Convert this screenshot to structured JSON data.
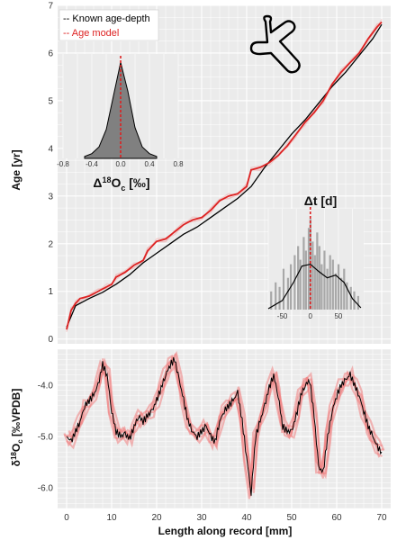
{
  "chart_data": [
    {
      "type": "line",
      "panel": "age-depth",
      "xlabel": "",
      "ylabel": "Age [yr]",
      "xlim": [
        -2,
        72
      ],
      "ylim": [
        -0.1,
        7
      ],
      "yticks": [
        0,
        1,
        2,
        3,
        4,
        5,
        6,
        7
      ],
      "legend": {
        "placement": "top-left",
        "entries": [
          "-- Known age-depth",
          "-- Age model"
        ]
      },
      "series": [
        {
          "name": "Known age-depth",
          "color": "#000000",
          "x": [
            0,
            2,
            5,
            8,
            11,
            14,
            17,
            20,
            23,
            26,
            29,
            32,
            35,
            38,
            41,
            44,
            47,
            50,
            53,
            56,
            59,
            62,
            65,
            68,
            70
          ],
          "y": [
            0.25,
            0.7,
            0.85,
            0.98,
            1.15,
            1.35,
            1.6,
            1.8,
            2.0,
            2.2,
            2.35,
            2.55,
            2.75,
            2.95,
            3.2,
            3.6,
            3.95,
            4.3,
            4.6,
            4.95,
            5.3,
            5.6,
            5.95,
            6.3,
            6.6
          ]
        },
        {
          "name": "Age model",
          "color": "#dd2222",
          "x": [
            0,
            1,
            2,
            3,
            5,
            7,
            9,
            10,
            11,
            13,
            15,
            17,
            18,
            20,
            22,
            24,
            26,
            28,
            30,
            32,
            34,
            36,
            38,
            40,
            41,
            43,
            45,
            47,
            49,
            51,
            53,
            55,
            57,
            59,
            61,
            63,
            65,
            67,
            69,
            70
          ],
          "y": [
            0.2,
            0.6,
            0.75,
            0.85,
            0.9,
            1.0,
            1.1,
            1.15,
            1.3,
            1.4,
            1.55,
            1.65,
            1.85,
            2.05,
            2.1,
            2.25,
            2.4,
            2.5,
            2.55,
            2.7,
            2.9,
            3.0,
            3.05,
            3.2,
            3.55,
            3.6,
            3.7,
            3.85,
            4.05,
            4.3,
            4.55,
            4.75,
            5.0,
            5.35,
            5.6,
            5.8,
            6.0,
            6.3,
            6.55,
            6.65
          ]
        }
      ]
    },
    {
      "type": "line",
      "panel": "isotope",
      "xlabel": "Length along record [mm]",
      "ylabel": "δ18Oc [‰VPDB]",
      "ylabel_parts": {
        "delta": "δ",
        "sup": "18",
        "o": "O",
        "sub": "c",
        "unit": " [‰VPDB]"
      },
      "xlim": [
        -2,
        72
      ],
      "ylim": [
        -6.4,
        -3.3
      ],
      "y_reversed": true,
      "xticks": [
        0,
        10,
        20,
        30,
        40,
        50,
        60,
        70
      ],
      "yticks": [
        -4.0,
        -5.0,
        -6.0
      ],
      "ytick_labels": [
        "-4.0",
        "-5.0",
        "-6.0"
      ],
      "series": [
        {
          "name": "",
          "color": "#000000",
          "x": [
            0,
            1,
            2,
            3,
            4,
            5,
            6,
            7,
            8,
            9,
            10,
            11,
            12,
            13,
            14,
            15,
            16,
            17,
            18,
            19,
            20,
            21,
            22,
            23,
            24,
            25,
            26,
            27,
            28,
            29,
            30,
            31,
            32,
            33,
            34,
            35,
            36,
            37,
            38,
            39,
            40,
            41,
            42,
            43,
            44,
            45,
            46,
            47,
            48,
            49,
            50,
            51,
            52,
            53,
            54,
            55,
            56,
            57,
            58,
            59,
            60,
            61,
            62,
            63,
            64,
            65,
            66,
            67,
            68,
            69,
            70
          ],
          "y": [
            -5.0,
            -5.1,
            -4.9,
            -4.7,
            -4.4,
            -4.3,
            -4.2,
            -4.0,
            -3.6,
            -3.8,
            -4.5,
            -4.9,
            -5.0,
            -4.95,
            -5.05,
            -4.8,
            -4.6,
            -4.7,
            -4.6,
            -4.5,
            -4.3,
            -4.05,
            -3.8,
            -3.6,
            -3.5,
            -3.9,
            -4.3,
            -4.7,
            -4.9,
            -5.0,
            -4.9,
            -4.8,
            -5.0,
            -5.1,
            -4.7,
            -4.5,
            -4.4,
            -4.3,
            -4.15,
            -4.7,
            -5.4,
            -6.1,
            -5.0,
            -4.7,
            -4.4,
            -4.05,
            -3.8,
            -4.2,
            -4.8,
            -4.9,
            -4.9,
            -4.6,
            -4.2,
            -4.0,
            -3.9,
            -4.6,
            -5.6,
            -5.7,
            -5.0,
            -4.5,
            -4.2,
            -4.0,
            -3.9,
            -3.8,
            -4.0,
            -4.2,
            -4.5,
            -4.8,
            -5.0,
            -5.2,
            -5.3
          ]
        }
      ]
    }
  ],
  "insets": [
    {
      "type": "histogram",
      "label_parts": {
        "delta": "Δ",
        "sup": "18",
        "o": "O",
        "sub": "c",
        "unit": " [‰]"
      },
      "xlim": [
        -0.8,
        0.8
      ],
      "xticks": [
        -0.8,
        -0.4,
        0.0,
        0.4,
        0.8
      ],
      "xtick_labels": [
        "-0.8",
        "-0.4",
        "0.0",
        "0.4",
        "0.8"
      ],
      "bins_x": [
        -0.5,
        -0.4,
        -0.3,
        -0.2,
        -0.1,
        0.0,
        0.1,
        0.2,
        0.3,
        0.4,
        0.5
      ],
      "density": [
        0.02,
        0.05,
        0.12,
        0.3,
        0.65,
        1.0,
        0.7,
        0.32,
        0.12,
        0.05,
        0.02
      ],
      "reference_line": 0.0
    },
    {
      "type": "histogram",
      "label": "Δt [d]",
      "xlim": [
        -75,
        95
      ],
      "xticks": [
        -50,
        0,
        50
      ],
      "xtick_labels": [
        "-50",
        "0",
        "50"
      ],
      "bars": [
        -70,
        -62,
        -55,
        -48,
        -40,
        -35,
        -28,
        -22,
        -18,
        -12,
        -8,
        -3,
        0,
        4,
        8,
        12,
        16,
        20,
        25,
        30,
        35,
        40,
        45,
        50,
        55,
        60,
        65,
        72,
        78,
        85
      ],
      "bar_heights": [
        0.2,
        0.3,
        0.25,
        0.45,
        0.35,
        0.5,
        0.6,
        0.7,
        0.55,
        0.8,
        0.65,
        0.9,
        1.0,
        0.75,
        0.6,
        0.85,
        0.7,
        0.5,
        0.65,
        0.45,
        0.6,
        0.55,
        0.4,
        0.5,
        0.35,
        0.45,
        0.3,
        0.25,
        0.2,
        0.15
      ],
      "density_x": [
        -75,
        -50,
        -30,
        -15,
        0,
        15,
        30,
        45,
        60,
        75,
        90
      ],
      "density_y": [
        0.01,
        0.1,
        0.3,
        0.48,
        0.5,
        0.42,
        0.35,
        0.38,
        0.3,
        0.12,
        0.02
      ],
      "reference_line": 0
    }
  ],
  "icon": "branching-tube-icon"
}
